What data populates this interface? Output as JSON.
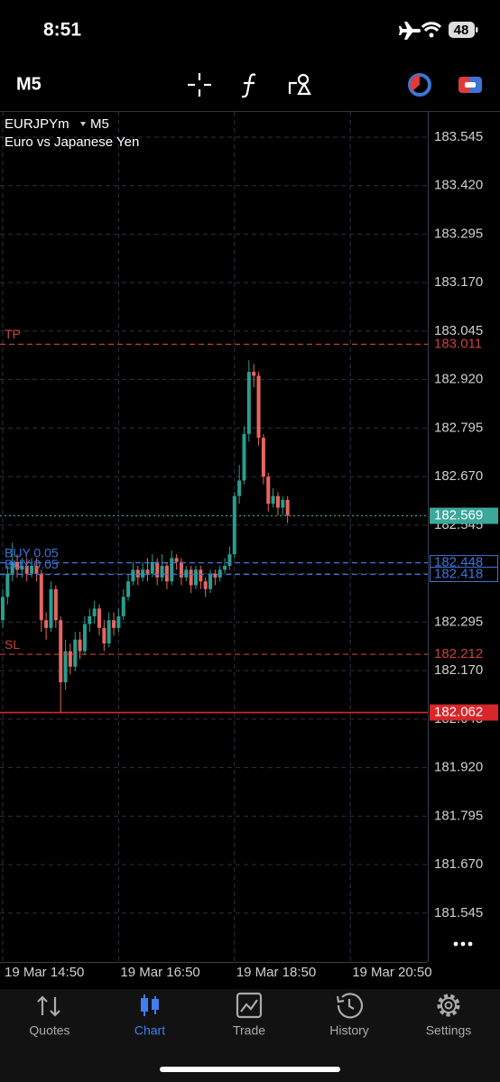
{
  "status_bar": {
    "time": "8:51",
    "battery": "48"
  },
  "toolbar": {
    "timeframe": "M5"
  },
  "chart_data": {
    "type": "candlestick",
    "symbol": "EURJPYm",
    "timeframe": "M5",
    "subtitle": "Euro vs Japanese Yen",
    "open": [
      182.3,
      182.36,
      182.42,
      182.45,
      182.43,
      182.44,
      182.42,
      182.44,
      182.42,
      182.3,
      182.28,
      182.38,
      182.3,
      182.14,
      182.22,
      182.18,
      182.25,
      182.22,
      182.29,
      182.31,
      182.33,
      182.28,
      182.24,
      182.3,
      182.28,
      182.31,
      182.36,
      182.4,
      182.43,
      182.41,
      182.43,
      182.42,
      182.45,
      182.41,
      182.44,
      182.4,
      182.46,
      182.45,
      182.41,
      182.43,
      182.39,
      182.43,
      182.4,
      182.38,
      182.42,
      182.41,
      182.43,
      182.44,
      182.47,
      182.62,
      182.66,
      182.78,
      182.94,
      182.93,
      182.77,
      182.67,
      182.6,
      182.62,
      182.59,
      182.61
    ],
    "high": [
      182.38,
      182.44,
      182.5,
      182.47,
      182.46,
      182.46,
      182.46,
      182.46,
      182.43,
      182.32,
      182.4,
      182.39,
      182.31,
      182.25,
      182.24,
      182.27,
      182.27,
      182.31,
      182.33,
      182.35,
      182.34,
      182.3,
      182.32,
      182.32,
      182.33,
      182.38,
      182.42,
      182.45,
      182.44,
      182.45,
      182.46,
      182.47,
      182.46,
      182.47,
      182.45,
      182.48,
      182.47,
      182.46,
      182.44,
      182.44,
      182.44,
      182.44,
      182.41,
      182.43,
      182.43,
      182.44,
      182.46,
      182.49,
      182.63,
      182.7,
      182.8,
      182.97,
      182.96,
      182.94,
      182.78,
      182.68,
      182.64,
      182.63,
      182.62,
      182.62
    ],
    "low": [
      182.28,
      182.34,
      182.4,
      182.41,
      182.41,
      182.4,
      182.41,
      182.4,
      182.27,
      182.25,
      182.27,
      182.28,
      182.06,
      182.12,
      182.16,
      182.17,
      182.2,
      182.21,
      182.27,
      182.29,
      182.26,
      182.22,
      182.23,
      182.26,
      182.27,
      182.3,
      182.35,
      182.39,
      182.39,
      182.4,
      182.4,
      182.41,
      182.39,
      182.4,
      182.38,
      182.39,
      182.43,
      182.39,
      182.4,
      182.37,
      182.38,
      182.38,
      182.36,
      182.37,
      182.39,
      182.4,
      182.42,
      182.43,
      182.46,
      182.6,
      182.65,
      182.76,
      182.9,
      182.75,
      182.65,
      182.58,
      182.59,
      182.57,
      182.57,
      182.55
    ],
    "close": [
      182.36,
      182.42,
      182.45,
      182.43,
      182.44,
      182.42,
      182.44,
      182.42,
      182.3,
      182.28,
      182.38,
      182.3,
      182.14,
      182.22,
      182.18,
      182.25,
      182.22,
      182.29,
      182.31,
      182.33,
      182.28,
      182.24,
      182.3,
      182.28,
      182.31,
      182.36,
      182.4,
      182.43,
      182.41,
      182.43,
      182.42,
      182.45,
      182.41,
      182.44,
      182.4,
      182.46,
      182.45,
      182.41,
      182.43,
      182.39,
      182.43,
      182.4,
      182.38,
      182.42,
      182.41,
      182.43,
      182.44,
      182.47,
      182.62,
      182.66,
      182.78,
      182.94,
      182.93,
      182.77,
      182.67,
      182.6,
      182.62,
      182.59,
      182.61,
      182.57
    ],
    "up_color": "#2a9d8f",
    "down_color": "#e5675f",
    "ylim": [
      181.419,
      183.61
    ],
    "yticks": [
      183.545,
      {
        "value": 183.42,
        "label": "183.420"
      },
      183.295,
      {
        "value": 183.17,
        "label": "183.170"
      },
      183.045,
      {
        "value": 182.92,
        "label": "182.920"
      },
      182.795,
      {
        "value": 182.67,
        "label": "182.670"
      },
      182.545,
      {
        "value": 182.42,
        "label": "182.420"
      },
      182.295,
      {
        "value": 182.17,
        "label": "182.170"
      },
      182.045,
      {
        "value": 181.92,
        "label": "181.920"
      },
      181.795,
      {
        "value": 181.67,
        "label": "181.670"
      },
      181.545
    ],
    "xlim": [
      -0.56,
      88.04
    ],
    "xticks": [
      {
        "value": 0,
        "label": "19 Mar 14:50"
      },
      {
        "value": 24,
        "label": "19 Mar 16:50"
      },
      {
        "value": 48,
        "label": "19 Mar 18:50"
      },
      {
        "value": 72,
        "label": "19 Mar 20:50"
      }
    ],
    "grid": true,
    "levels": [
      {
        "label": "TP",
        "value": 183.011,
        "color": "#c8423a",
        "style": "dashed",
        "marker": "text"
      },
      {
        "label": "BUY 0.05",
        "value": 182.448,
        "color": "#3f74d6",
        "style": "dashed",
        "marker": "outline"
      },
      {
        "label": "BUY 0.05",
        "value": 182.418,
        "color": "#3f74d6",
        "style": "dashed",
        "marker": "outline"
      },
      {
        "value": 182.569,
        "color": "#3aa89a",
        "style": "dotted",
        "marker": "filled"
      },
      {
        "label": "SL",
        "value": 182.212,
        "color": "#c8423a",
        "style": "dashed",
        "marker": "text"
      },
      {
        "value": 182.062,
        "color": "#d8262a",
        "style": "solid",
        "marker": "filled"
      }
    ]
  },
  "tabs": [
    {
      "label": "Quotes"
    },
    {
      "label": "Chart",
      "active": true
    },
    {
      "label": "Trade"
    },
    {
      "label": "History"
    },
    {
      "label": "Settings"
    }
  ]
}
